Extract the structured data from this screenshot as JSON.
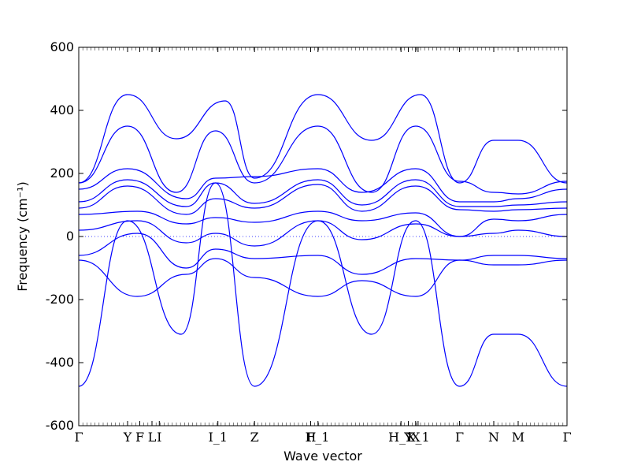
{
  "chart_data": {
    "type": "line",
    "title": "",
    "xlabel": "Wave vector",
    "ylabel": "Frequency (cm⁻¹)",
    "ylim": [
      -600,
      600
    ],
    "yticks": [
      -600,
      -400,
      -200,
      0,
      200,
      400,
      600
    ],
    "xlim": [
      0,
      1
    ],
    "xticks": [
      {
        "label": "Γ",
        "pos": 0.0
      },
      {
        "label": "Y",
        "pos": 0.1
      },
      {
        "label": "F",
        "pos": 0.125
      },
      {
        "label": "L",
        "pos": 0.15
      },
      {
        "label": "I",
        "pos": 0.165
      },
      {
        "label": "I_1",
        "pos": 0.285
      },
      {
        "label": "Z",
        "pos": 0.36
      },
      {
        "label": "H",
        "pos": 0.475
      },
      {
        "label": "F_1",
        "pos": 0.49
      },
      {
        "label": "H_1",
        "pos": 0.66
      },
      {
        "label": "Y",
        "pos": 0.675
      },
      {
        "label": "X",
        "pos": 0.69
      },
      {
        "label": "X_1",
        "pos": 0.695
      },
      {
        "label": "Γ",
        "pos": 0.78
      },
      {
        "label": "N",
        "pos": 0.85
      },
      {
        "label": "M",
        "pos": 0.9
      },
      {
        "label": "Γ",
        "pos": 1.0
      }
    ],
    "zero_line": true,
    "series_color": "#0000ff",
    "series": [
      {
        "x": [
          0,
          0.1,
          0.2,
          0.3,
          0.36,
          0.49,
          0.6,
          0.7,
          0.78,
          0.85,
          0.9,
          1.0
        ],
        "y": [
          170,
          450,
          310,
          430,
          185,
          450,
          305,
          450,
          170,
          305,
          305,
          170
        ]
      },
      {
        "x": [
          0,
          0.1,
          0.2,
          0.28,
          0.36,
          0.49,
          0.6,
          0.69,
          0.78,
          0.85,
          0.9,
          1.0
        ],
        "y": [
          170,
          350,
          140,
          335,
          170,
          350,
          140,
          350,
          175,
          140,
          135,
          175
        ]
      },
      {
        "x": [
          0,
          0.1,
          0.22,
          0.28,
          0.36,
          0.49,
          0.58,
          0.69,
          0.78,
          0.85,
          0.9,
          1.0
        ],
        "y": [
          150,
          215,
          120,
          185,
          190,
          215,
          140,
          215,
          110,
          110,
          120,
          150
        ]
      },
      {
        "x": [
          0,
          0.1,
          0.22,
          0.28,
          0.36,
          0.49,
          0.58,
          0.69,
          0.78,
          0.85,
          0.9,
          1.0
        ],
        "y": [
          110,
          180,
          95,
          170,
          105,
          180,
          100,
          180,
          95,
          95,
          100,
          110
        ]
      },
      {
        "x": [
          0,
          0.1,
          0.22,
          0.28,
          0.36,
          0.49,
          0.58,
          0.69,
          0.78,
          0.85,
          0.9,
          1.0
        ],
        "y": [
          90,
          160,
          70,
          120,
          90,
          165,
          80,
          160,
          85,
          80,
          85,
          90
        ]
      },
      {
        "x": [
          0,
          0.12,
          0.22,
          0.28,
          0.36,
          0.49,
          0.58,
          0.69,
          0.78,
          0.85,
          0.9,
          1.0
        ],
        "y": [
          70,
          80,
          40,
          60,
          45,
          80,
          50,
          75,
          0,
          55,
          50,
          70
        ]
      },
      {
        "x": [
          0,
          0.12,
          0.22,
          0.28,
          0.36,
          0.49,
          0.58,
          0.69,
          0.78,
          0.85,
          0.9,
          1.0
        ],
        "y": [
          20,
          50,
          -20,
          10,
          -30,
          50,
          -10,
          40,
          0,
          10,
          20,
          0
        ]
      },
      {
        "x": [
          0,
          0.12,
          0.22,
          0.28,
          0.36,
          0.49,
          0.58,
          0.69,
          0.78,
          0.85,
          0.9,
          1.0
        ],
        "y": [
          -60,
          10,
          -100,
          -40,
          -70,
          -60,
          -120,
          -70,
          -75,
          -60,
          -60,
          -70
        ]
      },
      {
        "x": [
          0,
          0.12,
          0.22,
          0.28,
          0.36,
          0.49,
          0.58,
          0.69,
          0.78,
          0.85,
          0.9,
          1.0
        ],
        "y": [
          -75,
          -190,
          -120,
          -70,
          -130,
          -190,
          -140,
          -190,
          -75,
          -90,
          -90,
          -75
        ]
      },
      {
        "x": [
          0,
          0.1,
          0.21,
          0.28,
          0.36,
          0.49,
          0.6,
          0.69,
          0.78,
          0.85,
          0.9,
          1.0
        ],
        "y": [
          -475,
          50,
          -310,
          170,
          -475,
          50,
          -310,
          50,
          -475,
          -310,
          -310,
          -475
        ]
      }
    ]
  }
}
